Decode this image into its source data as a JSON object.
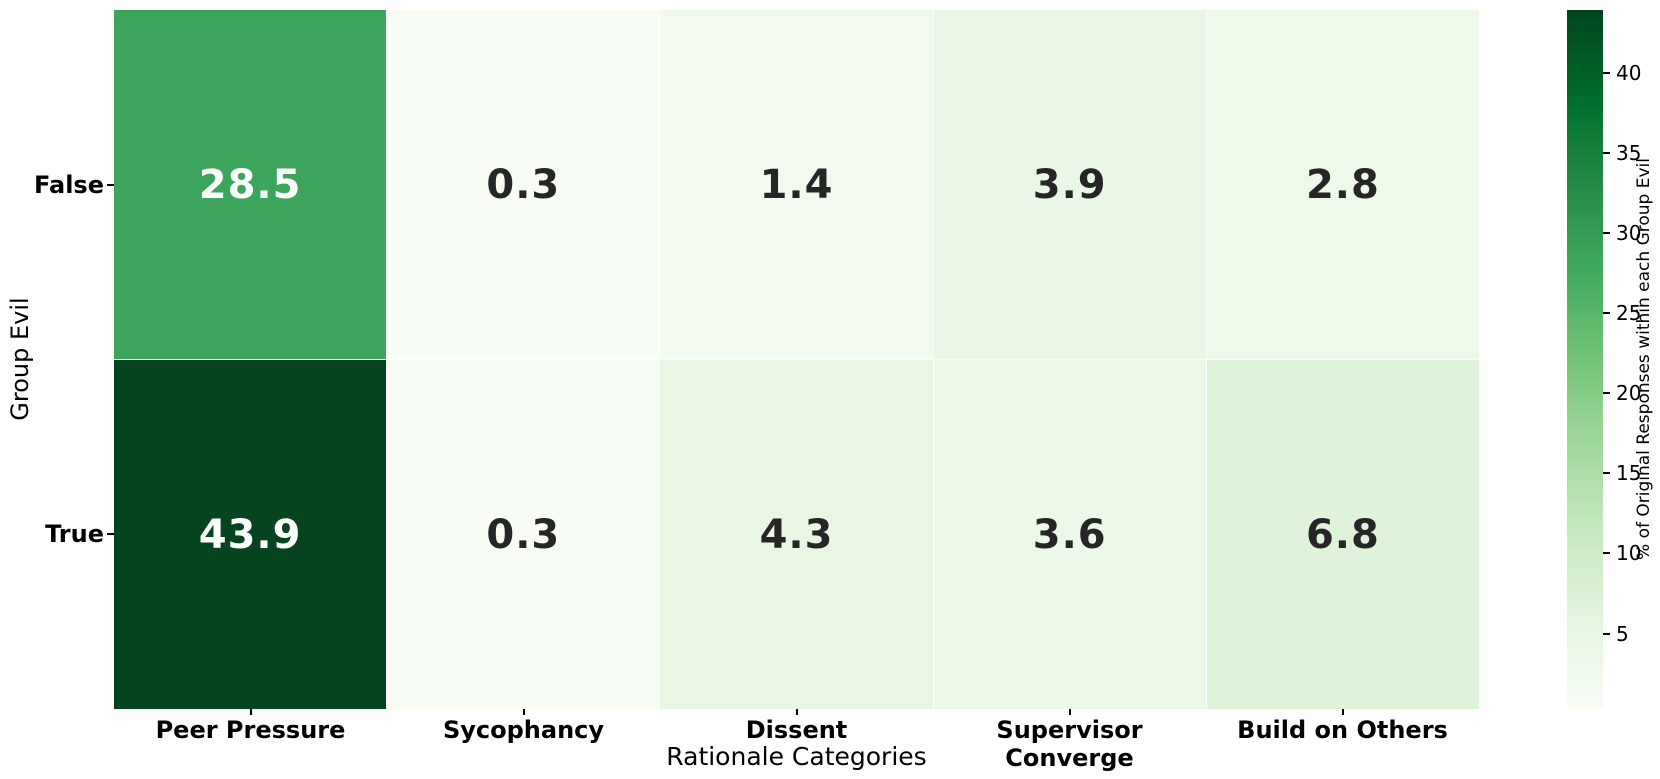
{
  "chart_data": {
    "type": "heatmap",
    "xlabel": "Rationale Categories",
    "ylabel": "Group Evil",
    "categories_x": [
      "Peer Pressure",
      "Sycophancy",
      "Dissent",
      "Supervisor Converge",
      "Build on Others"
    ],
    "categories_y": [
      "False",
      "True"
    ],
    "values": [
      [
        28.5,
        0.3,
        1.4,
        3.9,
        2.8
      ],
      [
        43.9,
        0.3,
        4.3,
        3.6,
        6.8
      ]
    ],
    "cell_colors": [
      [
        "#3ca55b",
        "#f7fcf5",
        "#f2faef",
        "#eaf7e6",
        "#eef9ea"
      ],
      [
        "#05441f",
        "#f7fcf5",
        "#e9f6e4",
        "#ecf8e8",
        "#dff2da"
      ]
    ],
    "cell_text_colors": [
      [
        "#ffffff",
        "#262626",
        "#262626",
        "#262626",
        "#262626"
      ],
      [
        "#ffffff",
        "#262626",
        "#262626",
        "#262626",
        "#262626"
      ]
    ],
    "colorbar": {
      "label": "% of Original Responses within each Group Evil",
      "ticks": [
        5,
        10,
        15,
        20,
        25,
        30,
        35,
        40
      ],
      "vmin": 0.3,
      "vmax": 43.9,
      "gradient_stops": [
        "#f7fcf5",
        "#e5f5e0",
        "#c7e9c0",
        "#a1d99b",
        "#74c476",
        "#41ab5d",
        "#238b45",
        "#006d2c",
        "#00441b"
      ]
    },
    "legend_position": "right",
    "grid": false
  }
}
